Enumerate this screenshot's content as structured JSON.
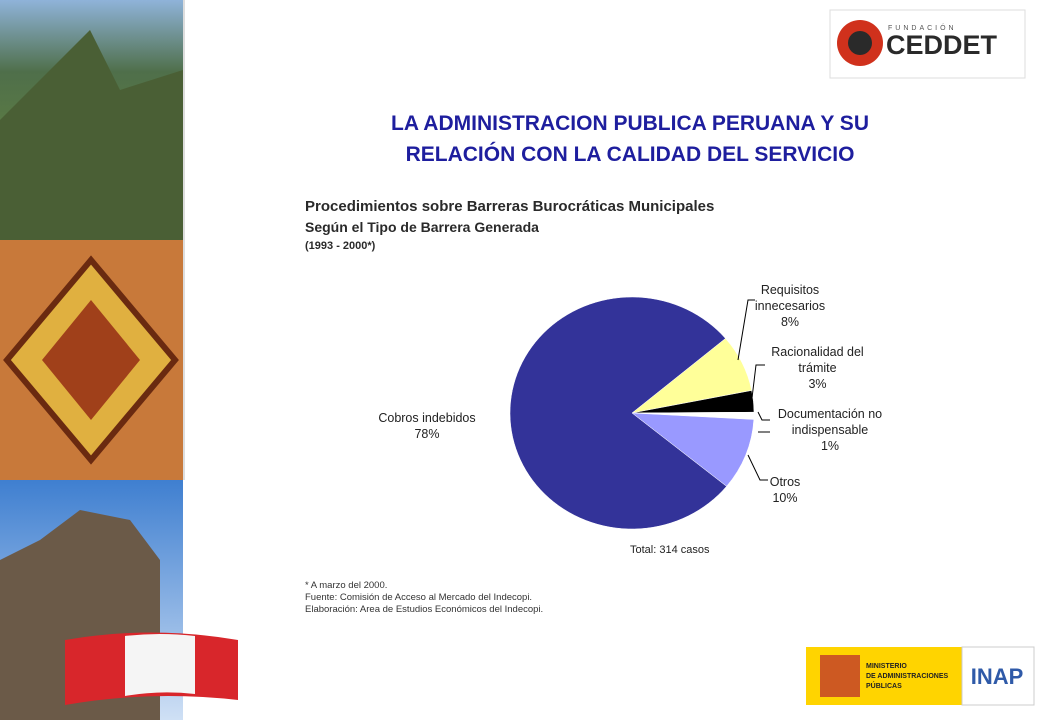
{
  "header": {
    "title_lines": [
      "LA ADMINISTRACION PUBLICA PERUANA Y SU",
      "RELACIÓN CON LA CALIDAD DEL SERVICIO"
    ]
  },
  "logos": {
    "ceddet_small": "FUNDACIÓN",
    "ceddet": "CEDDET",
    "ministerio_lines": [
      "MINISTERIO",
      "DE ADMINISTRACIONES",
      "PÚBLICAS"
    ],
    "inap": "INAP"
  },
  "chart_data": {
    "type": "pie",
    "title": "Procedimientos sobre Barreras Burocráticas Municipales",
    "subtitle": "Según el Tipo de Barrera Generada",
    "period": "(1993 - 2000*)",
    "categories": [
      "Requisitos innecesarios",
      "Racionalidad del trámite",
      "Documentación no indispensable",
      "Otros",
      "Cobros indebidos"
    ],
    "values": [
      8,
      3,
      1,
      10,
      78
    ],
    "value_labels": [
      "8%",
      "3%",
      "1%",
      "10%",
      "78%"
    ],
    "colors": [
      "#ffff99",
      "#000000",
      "#ffffff",
      "#9999ff",
      "#333399"
    ],
    "annotation": "Total: 314 casos"
  },
  "footnotes": [
    "* A marzo del 2000.",
    "Fuente: Comisión de Acceso al Mercado del Indecopi.",
    "Elaboración: Area de Estudios Económicos del Indecopi."
  ]
}
